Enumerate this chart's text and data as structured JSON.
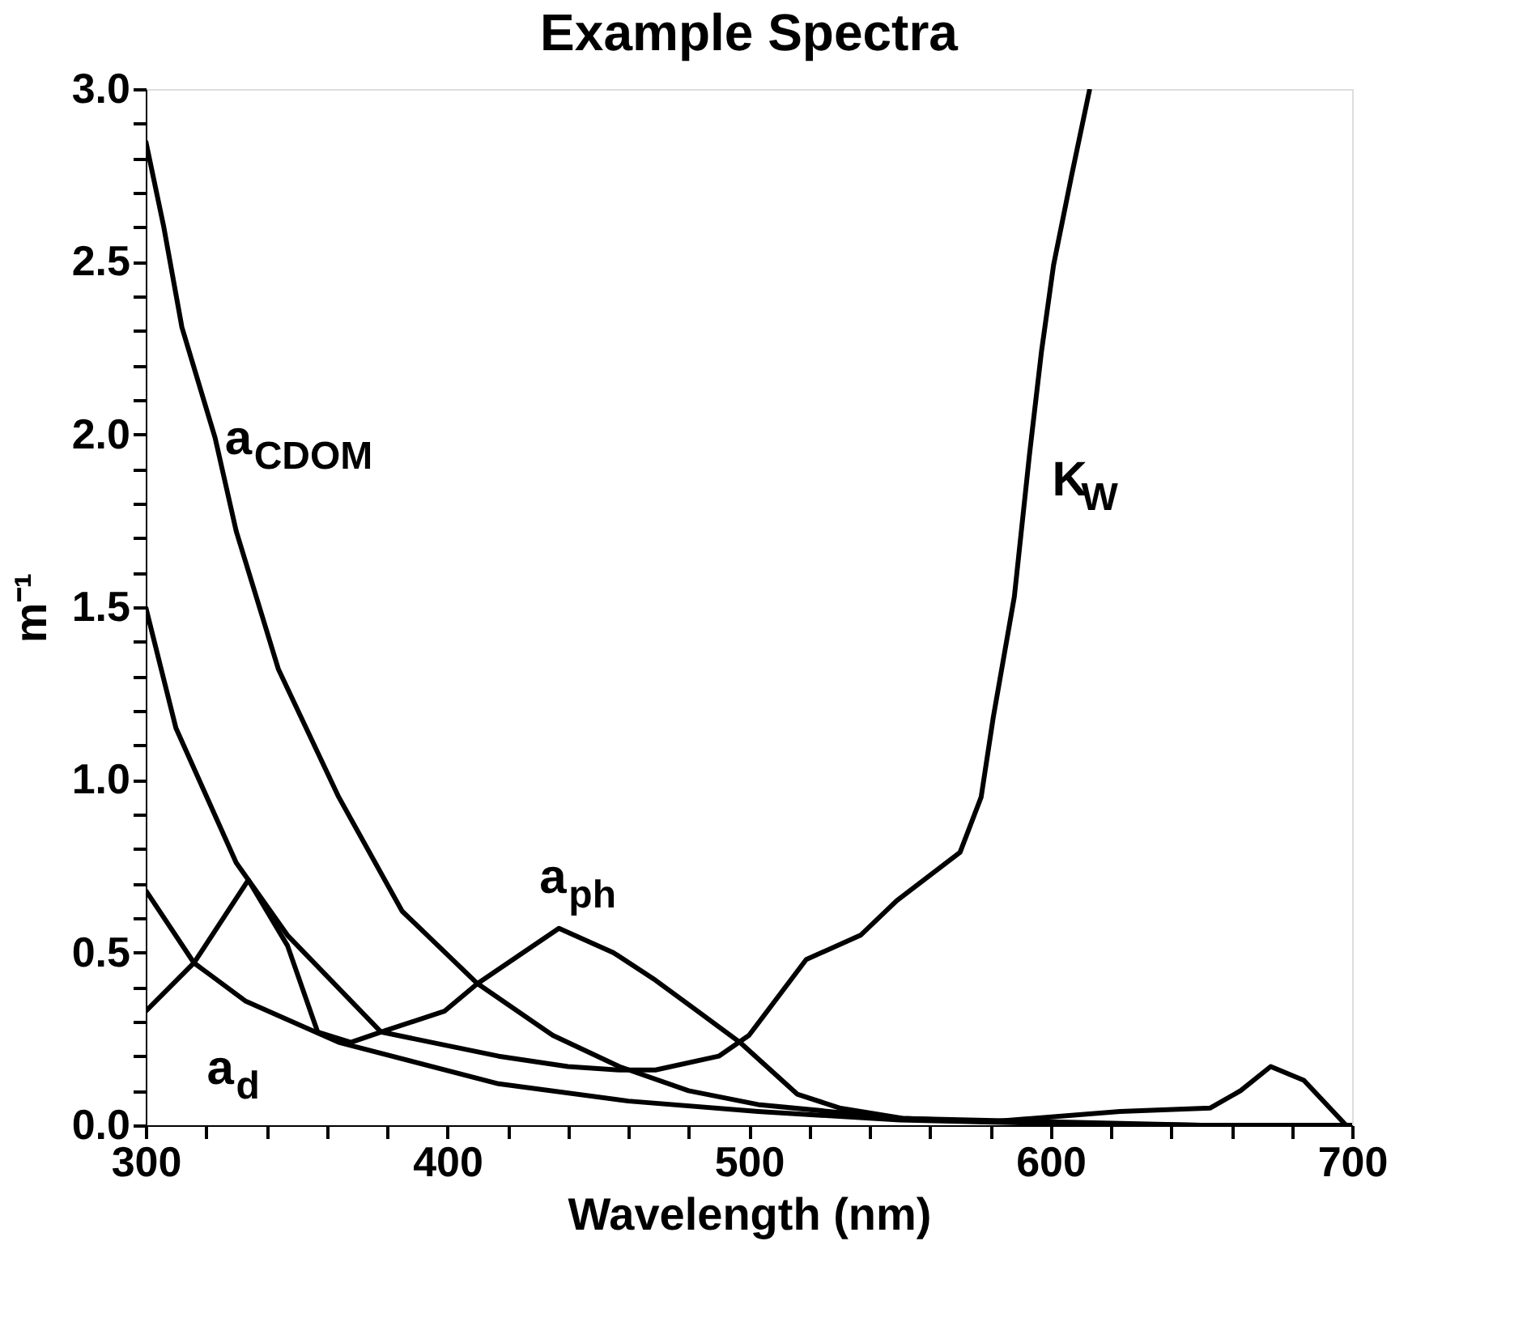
{
  "chart_data": {
    "type": "line",
    "title": "Example Spectra",
    "xlabel": "Wavelength (nm)",
    "ylabel": "m⁻¹",
    "xlim": [
      300,
      700
    ],
    "ylim": [
      0,
      3
    ],
    "xticks": [
      300,
      {
        "value": 320,
        "label": null
      },
      {
        "value": 340,
        "label": null
      },
      {
        "value": 360,
        "label": null
      },
      {
        "value": 380,
        "label": null
      },
      400,
      {
        "value": 420,
        "label": null
      },
      {
        "value": 440,
        "label": null
      },
      {
        "value": 460,
        "label": null
      },
      {
        "value": 480,
        "label": null
      },
      500,
      {
        "value": 520,
        "label": null
      },
      {
        "value": 540,
        "label": null
      },
      {
        "value": 560,
        "label": null
      },
      {
        "value": 580,
        "label": null
      },
      600,
      {
        "value": 620,
        "label": null
      },
      {
        "value": 640,
        "label": null
      },
      {
        "value": 660,
        "label": null
      },
      {
        "value": 680,
        "label": null
      },
      700
    ],
    "yticks": [
      {
        "value": 0,
        "label": "0.0"
      },
      {
        "value": 0.1,
        "label": null
      },
      {
        "value": 0.2,
        "label": null
      },
      {
        "value": 0.3,
        "label": null
      },
      {
        "value": 0.4,
        "label": null
      },
      0.5,
      {
        "value": 0.6,
        "label": null
      },
      {
        "value": 0.7,
        "label": null
      },
      {
        "value": 0.8,
        "label": null
      },
      {
        "value": 0.9,
        "label": null
      },
      {
        "value": 1,
        "label": "1.0"
      },
      {
        "value": 1.1,
        "label": null
      },
      {
        "value": 1.2,
        "label": null
      },
      {
        "value": 1.3,
        "label": null
      },
      {
        "value": 1.4,
        "label": null
      },
      1.5,
      {
        "value": 1.6,
        "label": null
      },
      {
        "value": 1.7,
        "label": null
      },
      {
        "value": 1.8,
        "label": null
      },
      {
        "value": 1.9,
        "label": null
      },
      {
        "value": 2,
        "label": "2.0"
      },
      {
        "value": 2.1,
        "label": null
      },
      {
        "value": 2.2,
        "label": null
      },
      {
        "value": 2.3,
        "label": null
      },
      {
        "value": 2.4,
        "label": null
      },
      2.5,
      {
        "value": 2.6,
        "label": null
      },
      {
        "value": 2.7,
        "label": null
      },
      {
        "value": 2.8,
        "label": null
      },
      {
        "value": 2.9,
        "label": null
      },
      {
        "value": 3,
        "label": "3.0"
      }
    ],
    "grid": false,
    "line_style": "solid",
    "marker": "none",
    "series": [
      {
        "name": "a$_{CDOM}$",
        "color": "#000000",
        "x": [
          300,
          306,
          312,
          323,
          330,
          344,
          364,
          385,
          410,
          435,
          457,
          480,
          503,
          550,
          600,
          650,
          700
        ],
        "values": [
          2.85,
          2.6,
          2.31,
          1.99,
          1.72,
          1.32,
          0.95,
          0.62,
          0.41,
          0.26,
          0.17,
          0.1,
          0.06,
          0.02,
          0.01,
          0.0,
          0.0
        ]
      },
      {
        "name": "K$_{W}$",
        "color": "#000000",
        "x": [
          300,
          310,
          330,
          347,
          378,
          417,
          440,
          457,
          469,
          490,
          500,
          519,
          537,
          549,
          570,
          577,
          581,
          588,
          593,
          597,
          601,
          607,
          613
        ],
        "values": [
          1.5,
          1.15,
          0.76,
          0.55,
          0.27,
          0.2,
          0.17,
          0.16,
          0.16,
          0.2,
          0.26,
          0.48,
          0.55,
          0.65,
          0.79,
          0.95,
          1.18,
          1.53,
          1.94,
          2.24,
          2.49,
          2.75,
          3.0
        ]
      },
      {
        "name": "a$_{d}$",
        "color": "#000000",
        "x": [
          300,
          316,
          333,
          364,
          417,
          460,
          503,
          550,
          600,
          650,
          700
        ],
        "values": [
          0.68,
          0.47,
          0.36,
          0.24,
          0.12,
          0.07,
          0.04,
          0.015,
          0.005,
          0.0,
          0.0
        ]
      },
      {
        "name": "a$_{ph}$",
        "color": "#000000",
        "x": [
          300,
          316,
          334,
          347,
          357,
          368,
          378,
          399,
          410,
          437,
          455,
          469,
          483,
          497,
          516,
          530,
          551,
          580,
          623,
          653,
          663,
          673,
          684,
          698,
          700
        ],
        "values": [
          0.33,
          0.47,
          0.71,
          0.52,
          0.27,
          0.24,
          0.27,
          0.33,
          0.41,
          0.57,
          0.5,
          0.42,
          0.33,
          0.24,
          0.09,
          0.05,
          0.02,
          0.01,
          0.04,
          0.05,
          0.1,
          0.17,
          0.13,
          0.0,
          0.0
        ]
      }
    ]
  }
}
